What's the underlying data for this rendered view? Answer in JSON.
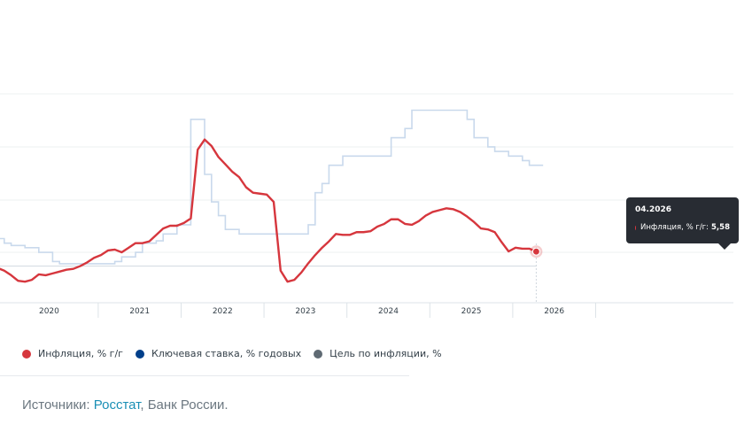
{
  "chart_data": {
    "type": "line",
    "x_ticks": [
      "2020",
      "2021",
      "2022",
      "2023",
      "2024",
      "2025",
      "2026"
    ],
    "series": [
      {
        "name": "Инфляция, % г/г",
        "color": "#d6363d",
        "x": [
          "2019-10",
          "2019-11",
          "2019-12",
          "2020-01",
          "2020-02",
          "2020-03",
          "2020-04",
          "2020-05",
          "2020-06",
          "2020-07",
          "2020-08",
          "2020-09",
          "2020-10",
          "2020-11",
          "2020-12",
          "2021-01",
          "2021-02",
          "2021-03",
          "2021-04",
          "2021-05",
          "2021-06",
          "2021-07",
          "2021-08",
          "2021-09",
          "2021-10",
          "2021-11",
          "2021-12",
          "2022-01",
          "2022-02",
          "2022-03",
          "2022-04",
          "2022-05",
          "2022-06",
          "2022-07",
          "2022-08",
          "2022-09",
          "2022-10",
          "2022-11",
          "2022-12",
          "2023-01",
          "2023-02",
          "2023-03",
          "2023-04",
          "2023-05",
          "2023-06",
          "2023-07",
          "2023-08",
          "2023-09",
          "2023-10",
          "2023-11",
          "2023-12",
          "2024-01",
          "2024-02",
          "2024-03",
          "2024-04",
          "2024-05",
          "2024-06",
          "2024-07",
          "2024-08",
          "2024-09",
          "2024-10",
          "2024-11",
          "2024-12",
          "2025-01",
          "2025-02",
          "2025-03",
          "2025-04",
          "2025-05",
          "2025-06",
          "2025-07",
          "2025-08",
          "2025-09",
          "2025-10",
          "2025-11",
          "2025-12",
          "2026-01",
          "2026-02",
          "2026-03",
          "2026-04"
        ],
        "values": [
          3.8,
          3.5,
          3.0,
          2.4,
          2.3,
          2.5,
          3.1,
          3.0,
          3.2,
          3.4,
          3.6,
          3.7,
          4.0,
          4.4,
          4.9,
          5.2,
          5.7,
          5.8,
          5.5,
          6.0,
          6.5,
          6.5,
          6.7,
          7.4,
          8.1,
          8.4,
          8.4,
          8.7,
          9.2,
          16.7,
          17.8,
          17.1,
          15.9,
          15.1,
          14.3,
          13.7,
          12.6,
          12.0,
          11.9,
          11.8,
          11.0,
          3.5,
          2.3,
          2.5,
          3.3,
          4.3,
          5.2,
          6.0,
          6.7,
          7.5,
          7.4,
          7.4,
          7.7,
          7.7,
          7.8,
          8.3,
          8.6,
          9.1,
          9.1,
          8.6,
          8.5,
          8.9,
          9.5,
          9.9,
          10.1,
          10.3,
          10.2,
          9.9,
          9.4,
          8.8,
          8.1,
          8.0,
          7.7,
          6.6,
          5.6,
          6.0,
          5.9,
          5.9,
          5.58
        ]
      },
      {
        "name": "Ключевая ставка, % годовых",
        "color": "#003f8a",
        "x": [
          "2019-10",
          "2019-11",
          "2019-12",
          "2020-01",
          "2020-02",
          "2020-03",
          "2020-04",
          "2020-05",
          "2020-06",
          "2020-07",
          "2020-08",
          "2020-09",
          "2020-10",
          "2020-11",
          "2020-12",
          "2021-01",
          "2021-02",
          "2021-03",
          "2021-04",
          "2021-05",
          "2021-06",
          "2021-07",
          "2021-08",
          "2021-09",
          "2021-10",
          "2021-11",
          "2021-12",
          "2022-01",
          "2022-02",
          "2022-03",
          "2022-04",
          "2022-05",
          "2022-06",
          "2022-07",
          "2022-08",
          "2022-09",
          "2022-10",
          "2022-11",
          "2022-12",
          "2023-01",
          "2023-02",
          "2023-03",
          "2023-04",
          "2023-05",
          "2023-06",
          "2023-07",
          "2023-08",
          "2023-09",
          "2023-10",
          "2023-11",
          "2023-12",
          "2024-01",
          "2024-02",
          "2024-03",
          "2024-04",
          "2024-05",
          "2024-06",
          "2024-07",
          "2024-08",
          "2024-09",
          "2024-10",
          "2024-11",
          "2024-12",
          "2025-01",
          "2025-02",
          "2025-03",
          "2025-04",
          "2025-05",
          "2025-06",
          "2025-07",
          "2025-08",
          "2025-09",
          "2025-10",
          "2025-11",
          "2025-12",
          "2026-01",
          "2026-02",
          "2026-03",
          "2026-04"
        ],
        "values": [
          7.0,
          6.5,
          6.25,
          6.25,
          6.0,
          6.0,
          5.5,
          5.5,
          4.5,
          4.25,
          4.25,
          4.25,
          4.25,
          4.25,
          4.25,
          4.25,
          4.25,
          4.5,
          5.0,
          5.0,
          5.5,
          6.5,
          6.5,
          6.75,
          7.5,
          7.5,
          8.5,
          8.5,
          20.0,
          20.0,
          14.0,
          11.0,
          9.5,
          8.0,
          8.0,
          7.5,
          7.5,
          7.5,
          7.5,
          7.5,
          7.5,
          7.5,
          7.5,
          7.5,
          7.5,
          8.5,
          12.0,
          13.0,
          15.0,
          15.0,
          16.0,
          16.0,
          16.0,
          16.0,
          16.0,
          16.0,
          16.0,
          18.0,
          18.0,
          19.0,
          21.0,
          21.0,
          21.0,
          21.0,
          21.0,
          21.0,
          21.0,
          21.0,
          20.0,
          18.0,
          18.0,
          17.0,
          16.5,
          16.5,
          16.0,
          16.0,
          15.5,
          15.0,
          15.0
        ]
      },
      {
        "name": "Цель по инфляции, %",
        "color": "#5f6a73",
        "x": [
          "2019-10",
          "2026-04"
        ],
        "values": [
          4.0,
          4.0
        ]
      }
    ],
    "ylim": [
      0,
      28
    ],
    "grid": true,
    "legend_position": "bottom-left",
    "tooltip": {
      "date": "04.2026",
      "label": "Инфляция, % г/г:",
      "value": "5,58"
    }
  },
  "legend": [
    {
      "label": "Инфляция, % г/г",
      "color": "#d6363d"
    },
    {
      "label": "Ключевая ставка, % годовых",
      "color": "#003f8a"
    },
    {
      "label": "Цель по инфляции, %",
      "color": "#5f6a73"
    }
  ],
  "sources": {
    "prefix": "Источники: ",
    "link": "Росстат",
    "rest": ", Банк России."
  },
  "colors": {
    "key_rate_line": "#c9d9ec",
    "target_line": "#d6dde3",
    "grid": "#eef0f2",
    "axis": "#dde3e8"
  }
}
